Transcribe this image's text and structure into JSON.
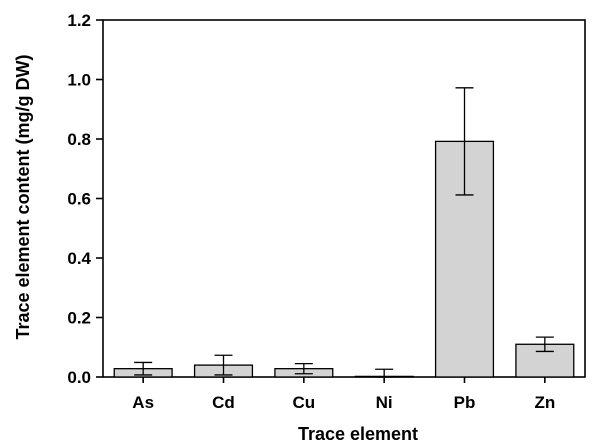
{
  "chart_data": {
    "type": "bar",
    "xlabel": "Trace element",
    "ylabel": "Trace element content (mg/g DW)",
    "ylim": [
      0,
      1.2
    ],
    "yticks": [
      "0.0",
      "0.2",
      "0.4",
      "0.6",
      "0.8",
      "1.0",
      "1.2"
    ],
    "categories": [
      "As",
      "Cd",
      "Cu",
      "Ni",
      "Pb",
      "Zn"
    ],
    "values": [
      0.028,
      0.04,
      0.028,
      0.002,
      0.792,
      0.11
    ],
    "error": [
      0.021,
      0.033,
      0.017,
      0.024,
      0.18,
      0.024
    ],
    "grid": false,
    "legend": "none"
  },
  "colors": {
    "bar_fill": "#d3d3d3",
    "stroke": "#000000",
    "background": "#ffffff"
  }
}
